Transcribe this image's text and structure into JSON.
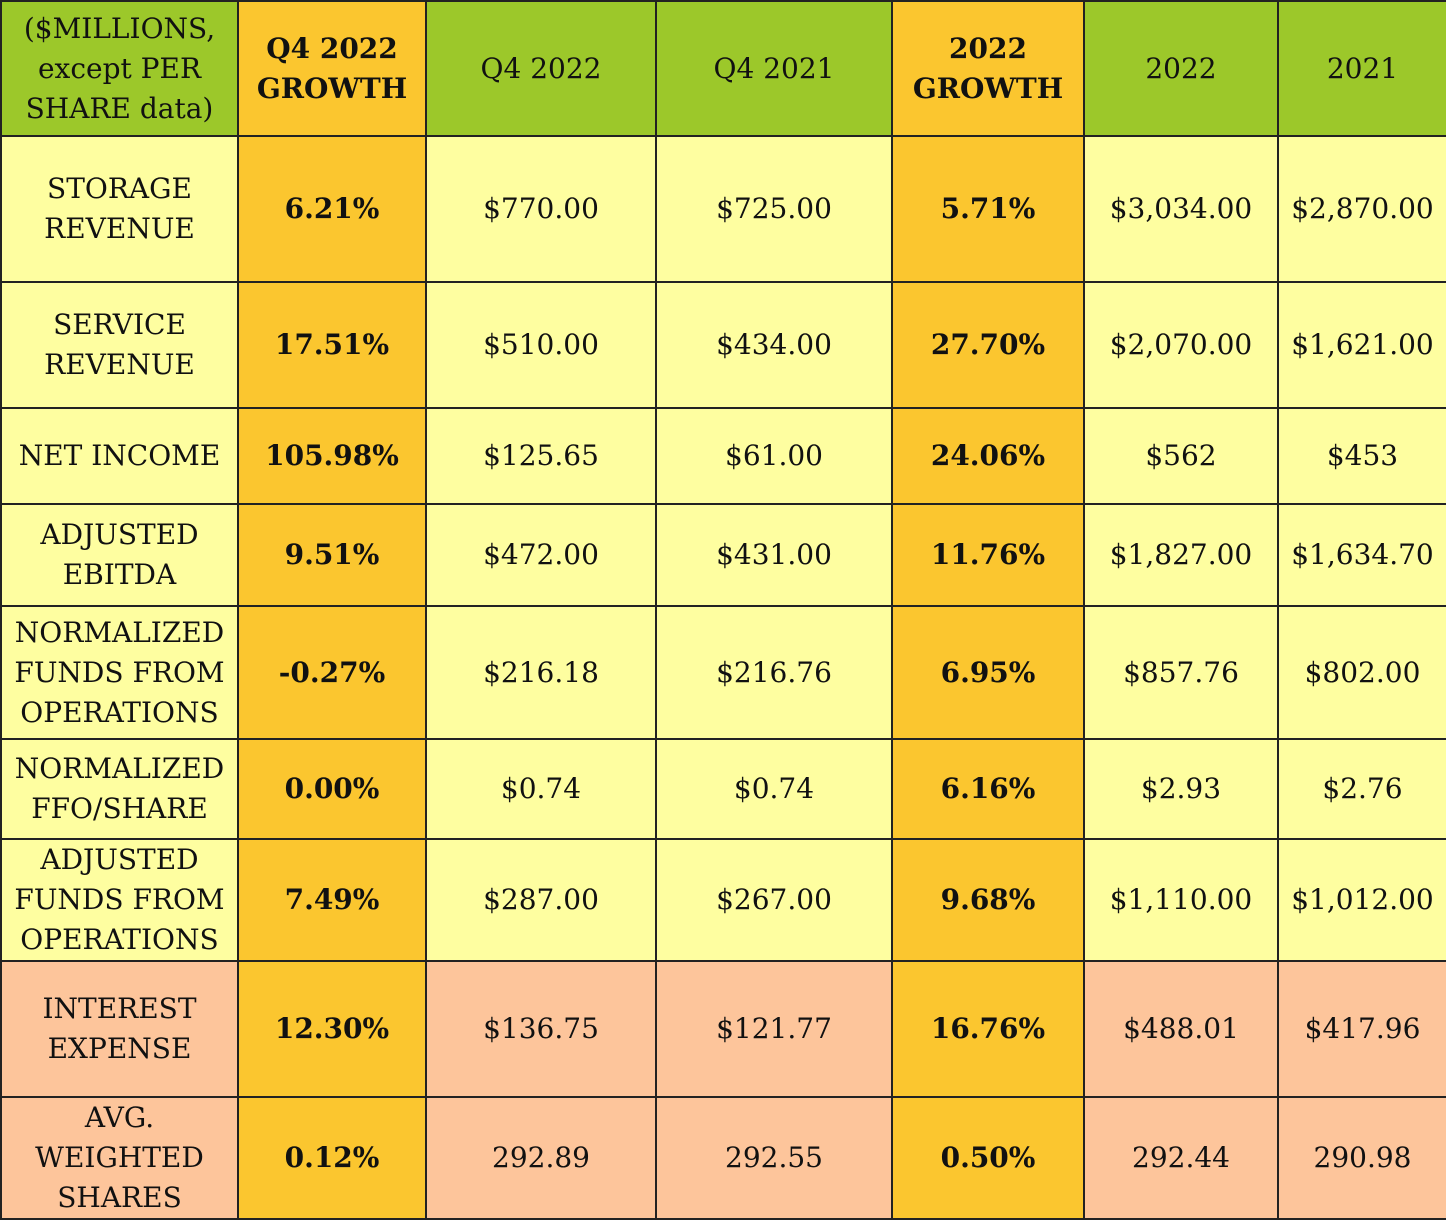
{
  "chart_data": {
    "type": "table",
    "columns": [
      "($MILLIONS, except PER SHARE data)",
      "Q4 2022 GROWTH",
      "Q4 2022",
      "Q4 2021",
      "2022 GROWTH",
      "2022",
      "2021"
    ],
    "header": {
      "col0": [
        "($MILLIONS,",
        "except PER",
        "SHARE data)"
      ],
      "col1": [
        "Q4 2022",
        "GROWTH"
      ],
      "col2": "Q4 2022",
      "col3": "Q4 2021",
      "col4": [
        "2022",
        "GROWTH"
      ],
      "col5": "2022",
      "col6": "2021"
    },
    "rows": [
      {
        "label": [
          "STORAGE",
          "REVENUE"
        ],
        "values": [
          "6.21%",
          "$770.00",
          "$725.00",
          "5.71%",
          "$3,034.00",
          "$2,870.00"
        ],
        "band": "yellow"
      },
      {
        "label": [
          "SERVICE",
          "REVENUE"
        ],
        "values": [
          "17.51%",
          "$510.00",
          "$434.00",
          "27.70%",
          "$2,070.00",
          "$1,621.00"
        ],
        "band": "yellow"
      },
      {
        "label": [
          "NET INCOME"
        ],
        "values": [
          "105.98%",
          "$125.65",
          "$61.00",
          "24.06%",
          "$562",
          "$453"
        ],
        "band": "yellow"
      },
      {
        "label": [
          "ADJUSTED",
          "EBITDA"
        ],
        "values": [
          "9.51%",
          "$472.00",
          "$431.00",
          "11.76%",
          "$1,827.00",
          "$1,634.70"
        ],
        "band": "yellow"
      },
      {
        "label": [
          "NORMALIZED",
          "FUNDS FROM",
          "OPERATIONS"
        ],
        "values": [
          "-0.27%",
          "$216.18",
          "$216.76",
          "6.95%",
          "$857.76",
          "$802.00"
        ],
        "band": "yellow"
      },
      {
        "label": [
          "NORMALIZED",
          "FFO/SHARE"
        ],
        "values": [
          "0.00%",
          "$0.74",
          "$0.74",
          "6.16%",
          "$2.93",
          "$2.76"
        ],
        "band": "yellow"
      },
      {
        "label": [
          "ADJUSTED",
          "FUNDS FROM",
          "OPERATIONS"
        ],
        "values": [
          "7.49%",
          "$287.00",
          "$267.00",
          "9.68%",
          "$1,110.00",
          "$1,012.00"
        ],
        "band": "yellow"
      },
      {
        "label": [
          "INTEREST",
          "EXPENSE"
        ],
        "values": [
          "12.30%",
          "$136.75",
          "$121.77",
          "16.76%",
          "$488.01",
          "$417.96"
        ],
        "band": "peach"
      },
      {
        "label": [
          "AVG.",
          "WEIGHTED",
          "SHARES"
        ],
        "values": [
          "0.12%",
          "292.89",
          "292.55",
          "0.50%",
          "292.44",
          "290.98"
        ],
        "band": "peach"
      }
    ],
    "colors": {
      "header_green": "#9cc82a",
      "growth_gold": "#fbc62f",
      "row_yellow": "#fefea0",
      "row_peach": "#fdc59b"
    }
  }
}
